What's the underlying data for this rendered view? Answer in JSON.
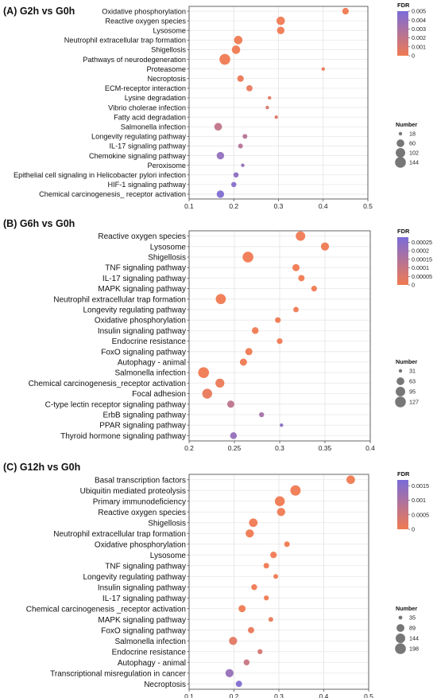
{
  "chart_data": [
    {
      "type": "scatter",
      "title": "(A) G2h vs G0h",
      "xlim": [
        0.1,
        0.5
      ],
      "x_ticks": [
        "0.1",
        "0.2",
        "0.3",
        "0.4",
        "0.5"
      ],
      "grid": true,
      "color_legend": {
        "title": "FDR",
        "ticks": [
          "0.005",
          "0.004",
          "0.003",
          "0.002",
          "0.001",
          "0"
        ],
        "min": 0,
        "max": 0.005,
        "low_color": "#F07A52",
        "high_color": "#7A6CD8"
      },
      "size_legend": {
        "title": "Number",
        "values": [
          18,
          60,
          102,
          144
        ]
      },
      "size_range": [
        18,
        144
      ],
      "points": [
        {
          "term": "Oxidative phosphorylation",
          "x": 0.45,
          "count": 40,
          "fdr": 0
        },
        {
          "term": "Reactive oxygen species",
          "x": 0.305,
          "count": 75,
          "fdr": 0
        },
        {
          "term": "Lysosome",
          "x": 0.305,
          "count": 55,
          "fdr": 0
        },
        {
          "term": "Neutrophil extracellular trap formation",
          "x": 0.21,
          "count": 75,
          "fdr": 0
        },
        {
          "term": "Shigellosis",
          "x": 0.205,
          "count": 75,
          "fdr": 0
        },
        {
          "term": "Pathways of neurodegeneration",
          "x": 0.18,
          "count": 144,
          "fdr": 0
        },
        {
          "term": "Proteasome",
          "x": 0.4,
          "count": 18,
          "fdr": 0.0002
        },
        {
          "term": "Necroptosis",
          "x": 0.215,
          "count": 40,
          "fdr": 0.0002
        },
        {
          "term": "ECM-receptor interaction",
          "x": 0.235,
          "count": 35,
          "fdr": 0.0004
        },
        {
          "term": "Lysine degradation",
          "x": 0.28,
          "count": 18,
          "fdr": 0.0005
        },
        {
          "term": "Vibrio cholerae infection",
          "x": 0.275,
          "count": 18,
          "fdr": 0.001
        },
        {
          "term": "Fatty acid degradation",
          "x": 0.295,
          "count": 18,
          "fdr": 0.0008
        },
        {
          "term": "Salmonella infection",
          "x": 0.165,
          "count": 60,
          "fdr": 0.002
        },
        {
          "term": "Longevity regulating pathway",
          "x": 0.225,
          "count": 22,
          "fdr": 0.0025
        },
        {
          "term": "IL-17 signaling pathway",
          "x": 0.215,
          "count": 22,
          "fdr": 0.0025
        },
        {
          "term": "Chemokine signaling pathway",
          "x": 0.17,
          "count": 55,
          "fdr": 0.004
        },
        {
          "term": "Peroxisome",
          "x": 0.22,
          "count": 18,
          "fdr": 0.004
        },
        {
          "term": "Epithelial cell signaling in Helicobacter pylori infection",
          "x": 0.205,
          "count": 25,
          "fdr": 0.0042
        },
        {
          "term": "HIF-1 signaling pathway",
          "x": 0.2,
          "count": 25,
          "fdr": 0.0045
        },
        {
          "term": "Chemical carcinogenesis_ receptor activation",
          "x": 0.17,
          "count": 55,
          "fdr": 0.0048
        }
      ]
    },
    {
      "type": "scatter",
      "title": "(B) G6h vs G0h",
      "xlim": [
        0.2,
        0.4
      ],
      "x_ticks": [
        "0.2",
        "0.25",
        "0.3",
        "0.35",
        "0.4"
      ],
      "grid": true,
      "color_legend": {
        "title": "FDR",
        "ticks": [
          "0.00025",
          "0.0002",
          "0.00015",
          "0.0001",
          "0.00005",
          "0"
        ],
        "min": 0,
        "max": 0.00028,
        "low_color": "#F07A52",
        "high_color": "#7A6CD8"
      },
      "size_legend": {
        "title": "Number",
        "values": [
          31,
          63,
          95,
          127
        ]
      },
      "size_range": [
        31,
        127
      ],
      "points": [
        {
          "term": "Reactive oxygen species",
          "x": 0.323,
          "count": 95,
          "fdr": 0
        },
        {
          "term": "Lysosome",
          "x": 0.35,
          "count": 70,
          "fdr": 0
        },
        {
          "term": "Shigellosis",
          "x": 0.265,
          "count": 127,
          "fdr": 0
        },
        {
          "term": "TNF signaling pathway",
          "x": 0.318,
          "count": 55,
          "fdr": 0
        },
        {
          "term": "IL-17 signaling pathway",
          "x": 0.324,
          "count": 45,
          "fdr": 0
        },
        {
          "term": "MAPK signaling pathway",
          "x": 0.338,
          "count": 40,
          "fdr": 0
        },
        {
          "term": "Neutrophil extracellular trap formation",
          "x": 0.235,
          "count": 110,
          "fdr": 0
        },
        {
          "term": "Longevity regulating pathway",
          "x": 0.318,
          "count": 38,
          "fdr": 0
        },
        {
          "term": "Oxidative phosphorylation",
          "x": 0.298,
          "count": 40,
          "fdr": 0
        },
        {
          "term": "Insulin signaling pathway",
          "x": 0.273,
          "count": 50,
          "fdr": 0
        },
        {
          "term": "Endocrine resistance",
          "x": 0.3,
          "count": 40,
          "fdr": 0
        },
        {
          "term": "FoxO signaling pathway",
          "x": 0.266,
          "count": 55,
          "fdr": 0
        },
        {
          "term": "Autophagy - animal",
          "x": 0.26,
          "count": 55,
          "fdr": 0
        },
        {
          "term": "Salmonella infection",
          "x": 0.216,
          "count": 127,
          "fdr": 0
        },
        {
          "term": "Chemical carcinogenesis_receptor activation",
          "x": 0.234,
          "count": 85,
          "fdr": 1e-05
        },
        {
          "term": "Focal adhesion",
          "x": 0.22,
          "count": 105,
          "fdr": 2e-05
        },
        {
          "term": "C-type lectin receptor signaling pathway",
          "x": 0.246,
          "count": 55,
          "fdr": 0.00012
        },
        {
          "term": "ErbB signaling pathway",
          "x": 0.28,
          "count": 35,
          "fdr": 0.00018
        },
        {
          "term": "PPAR signaling pathway",
          "x": 0.302,
          "count": 31,
          "fdr": 0.00024
        },
        {
          "term": "Thyroid hormone signaling pathway",
          "x": 0.249,
          "count": 50,
          "fdr": 0.00022
        }
      ]
    },
    {
      "type": "scatter",
      "title": "(C) G12h vs G0h",
      "xlim": [
        0.1,
        0.5
      ],
      "x_ticks": [
        "0.1",
        "0.2",
        "0.3",
        "0.4",
        "0.5"
      ],
      "grid": true,
      "color_legend": {
        "title": "FDR",
        "ticks": [
          "0.0015",
          "0.001",
          "0.0005",
          "0"
        ],
        "min": 0,
        "max": 0.0017,
        "low_color": "#F07A52",
        "high_color": "#7A6CD8"
      },
      "size_legend": {
        "title": "Number",
        "values": [
          35,
          89,
          144,
          198
        ]
      },
      "size_range": [
        35,
        198
      ],
      "points": [
        {
          "term": "Basal transcription factors",
          "x": 0.46,
          "count": 110,
          "fdr": 0
        },
        {
          "term": "Ubiquitin mediated proteolysis",
          "x": 0.337,
          "count": 175,
          "fdr": 0
        },
        {
          "term": "Primary immunodeficiency",
          "x": 0.302,
          "count": 160,
          "fdr": 0
        },
        {
          "term": "Reactive oxygen species",
          "x": 0.305,
          "count": 100,
          "fdr": 0
        },
        {
          "term": "Shigellosis",
          "x": 0.243,
          "count": 110,
          "fdr": 0
        },
        {
          "term": "Neutrophil extracellular trap formation",
          "x": 0.235,
          "count": 100,
          "fdr": 0
        },
        {
          "term": "Oxidative phosphorylation",
          "x": 0.318,
          "count": 45,
          "fdr": 0
        },
        {
          "term": "Lysosome",
          "x": 0.288,
          "count": 60,
          "fdr": 0
        },
        {
          "term": "TNF signaling pathway",
          "x": 0.272,
          "count": 45,
          "fdr": 0
        },
        {
          "term": "Longevity regulating pathway",
          "x": 0.293,
          "count": 38,
          "fdr": 0
        },
        {
          "term": "Insulin signaling pathway",
          "x": 0.245,
          "count": 50,
          "fdr": 0
        },
        {
          "term": "IL-17 signaling pathway",
          "x": 0.272,
          "count": 40,
          "fdr": 0
        },
        {
          "term": "Chemical carcinogenesis _receptor activation",
          "x": 0.218,
          "count": 70,
          "fdr": 0
        },
        {
          "term": "MAPK signaling pathway",
          "x": 0.282,
          "count": 38,
          "fdr": 0.0001
        },
        {
          "term": "FoxO signaling pathway",
          "x": 0.238,
          "count": 55,
          "fdr": 0.0001
        },
        {
          "term": "Salmonella infection",
          "x": 0.198,
          "count": 95,
          "fdr": 0.0002
        },
        {
          "term": "Endocrine resistance",
          "x": 0.258,
          "count": 40,
          "fdr": 0.0004
        },
        {
          "term": "Autophagy - animal",
          "x": 0.228,
          "count": 50,
          "fdr": 0.0006
        },
        {
          "term": "Transcriptional misregulation in cancer",
          "x": 0.19,
          "count": 95,
          "fdr": 0.0013
        },
        {
          "term": "Necroptosis",
          "x": 0.211,
          "count": 55,
          "fdr": 0.0016
        }
      ]
    }
  ]
}
